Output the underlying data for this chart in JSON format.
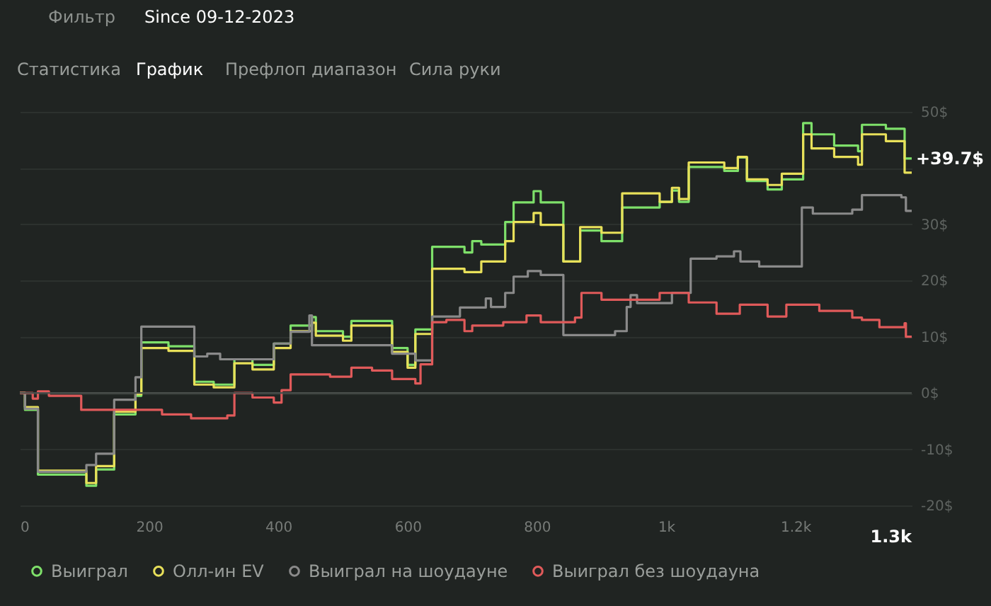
{
  "chart_data": {
    "type": "step",
    "annotations": [
      "Фильтр",
      "Since 09-12-2023",
      "Статистика",
      "График",
      "Префлоп диапазон",
      "Сила руки",
      "+39.7$",
      "1.3k"
    ],
    "xlim": [
      0,
      1380
    ],
    "xticks": [
      0,
      200,
      400,
      600,
      800,
      {
        "value": 1000,
        "label": "1k"
      },
      {
        "value": 1200,
        "label": "1.2k"
      }
    ],
    "ylim": [
      -20,
      50
    ],
    "yticks": [
      {
        "value": -20,
        "label": "-20$"
      },
      {
        "value": -10,
        "label": "-10$"
      },
      {
        "value": 0,
        "label": "0$"
      },
      {
        "value": 10,
        "label": "10$"
      },
      {
        "value": 20,
        "label": "20$"
      },
      {
        "value": 30,
        "label": "30$"
      },
      {
        "value": 40,
        "label": null
      },
      {
        "value": 50,
        "label": "50$"
      }
    ],
    "grid": "y",
    "legend": "bottom",
    "ref_lines": [
      {
        "axis": "y",
        "value": 0,
        "color": "#4a4f4c"
      }
    ],
    "series": [
      {
        "name": "Выиграл",
        "color": "#7ee06a",
        "x": [
          0,
          8,
          28,
          103,
          118,
          146,
          179,
          188,
          230,
          270,
          300,
          332,
          360,
          393,
          419,
          452,
          458,
          500,
          513,
          576,
          600,
          612,
          638,
          688,
          700,
          714,
          751,
          764,
          795,
          806,
          841,
          867,
          900,
          932,
          990,
          1009,
          1020,
          1035,
          1090,
          1111,
          1125,
          1157,
          1179,
          1212,
          1225,
          1260,
          1297,
          1303,
          1340,
          1369,
          1380
        ],
        "values": [
          0,
          -3,
          -14.5,
          -16.5,
          -13.6,
          -3.8,
          -0.5,
          9,
          8.3,
          2,
          1.5,
          6,
          5,
          8.8,
          12,
          13.5,
          11,
          10,
          12.8,
          8,
          5,
          11.3,
          26,
          25,
          27,
          26.4,
          30.4,
          33.9,
          35.9,
          33.9,
          23.4,
          28.9,
          27,
          33,
          34,
          36,
          34,
          40.2,
          39.5,
          41.9,
          37.7,
          36.2,
          38,
          48,
          46,
          44,
          43,
          47.7,
          47,
          41.7,
          41.7
        ]
      },
      {
        "name": "Олл-ин EV",
        "color": "#e8e05a",
        "x": [
          0,
          8,
          28,
          103,
          118,
          146,
          179,
          188,
          230,
          270,
          300,
          332,
          360,
          393,
          419,
          452,
          458,
          500,
          513,
          576,
          600,
          612,
          638,
          688,
          714,
          751,
          764,
          795,
          806,
          841,
          867,
          900,
          932,
          990,
          1009,
          1020,
          1035,
          1090,
          1111,
          1125,
          1157,
          1179,
          1212,
          1225,
          1260,
          1297,
          1303,
          1340,
          1369,
          1380
        ],
        "values": [
          0,
          -2.5,
          -13.8,
          -16,
          -13,
          -3.3,
          -0.2,
          8,
          7.5,
          1.5,
          1,
          5.3,
          4.2,
          8,
          11,
          12.5,
          10.2,
          9.3,
          12,
          7.3,
          4.5,
          10.5,
          22.1,
          21.5,
          23.4,
          27,
          30.4,
          32,
          29.9,
          23.4,
          29.5,
          28.5,
          35.5,
          34,
          36.5,
          34.5,
          41,
          40,
          42,
          38,
          37,
          39,
          46,
          43.5,
          42,
          40.6,
          46,
          44.8,
          39.2,
          39.2
        ]
      },
      {
        "name": "Выиграл на шоудауне",
        "color": "#8a8a8a",
        "x": [
          0,
          8,
          28,
          103,
          118,
          146,
          179,
          188,
          270,
          290,
          310,
          393,
          419,
          448,
          452,
          576,
          612,
          638,
          681,
          721,
          729,
          751,
          764,
          786,
          806,
          841,
          921,
          939,
          945,
          955,
          1009,
          1038,
          1078,
          1105,
          1115,
          1144,
          1210,
          1227,
          1288,
          1303,
          1364,
          1371,
          1380
        ],
        "values": [
          0,
          -2.8,
          -14,
          -12.8,
          -10.8,
          -1.2,
          2.8,
          11.8,
          6.5,
          7,
          6,
          8.8,
          10.9,
          13.8,
          8.5,
          7,
          5.8,
          13.6,
          15.2,
          16.8,
          15.3,
          17.8,
          20.7,
          21.7,
          21,
          10.3,
          11,
          15.3,
          17.4,
          16,
          17.8,
          23.9,
          24.3,
          25.2,
          23.4,
          22.5,
          33,
          31.9,
          32.6,
          35.2,
          34.8,
          32.4,
          32.4
        ]
      },
      {
        "name": "Выиграл без шоудауна",
        "color": "#e05a5a",
        "x": [
          0,
          20,
          28,
          45,
          95,
          220,
          265,
          321,
          332,
          360,
          393,
          405,
          419,
          480,
          513,
          545,
          576,
          612,
          620,
          638,
          660,
          688,
          700,
          748,
          784,
          806,
          859,
          869,
          900,
          937,
          990,
          1035,
          1078,
          1114,
          1157,
          1186,
          1237,
          1288,
          1303,
          1330,
          1369,
          1371,
          1380
        ],
        "values": [
          0,
          -1,
          0.3,
          -0.5,
          -3,
          -3.8,
          -4.5,
          -4,
          0,
          -0.8,
          -1.7,
          0.5,
          3.3,
          2.9,
          4.5,
          4,
          2.5,
          1.7,
          5.1,
          12.6,
          13,
          11,
          12,
          12.6,
          13.8,
          12.6,
          13.4,
          17.8,
          16.6,
          16.6,
          17.8,
          16.1,
          14.1,
          15.7,
          13.6,
          15.7,
          14.6,
          13.4,
          13,
          11.7,
          12.4,
          10,
          10
        ]
      }
    ]
  }
}
